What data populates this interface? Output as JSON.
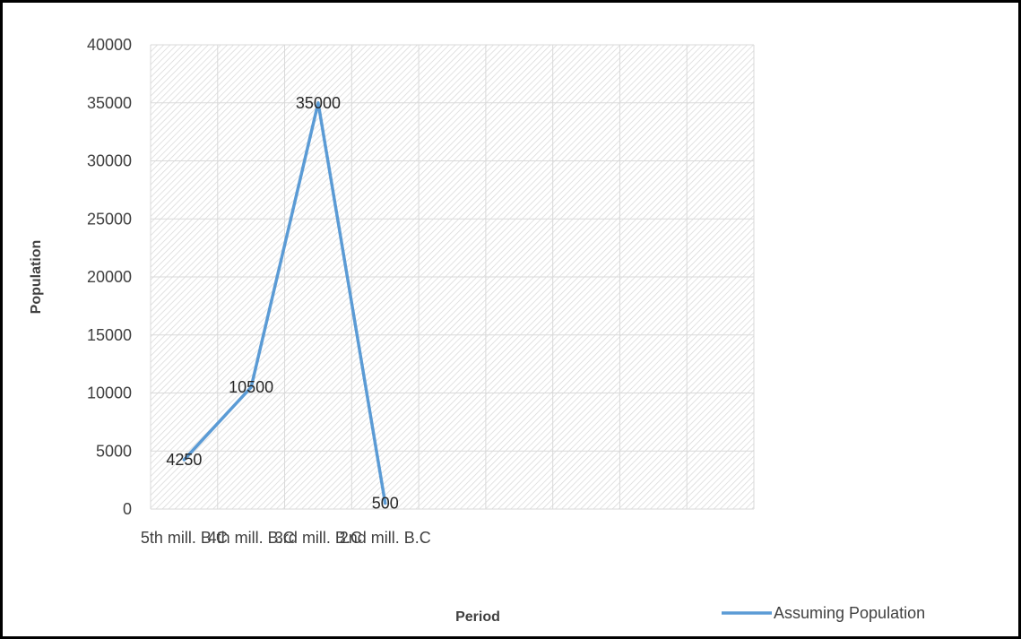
{
  "chart_data": {
    "type": "line",
    "title": "",
    "xlabel": "Period",
    "ylabel": "Population",
    "categories": [
      "5th mill. B.C",
      "4th mill. B.C",
      "3rd mill. B.C",
      "2nd mill. B.C"
    ],
    "slots": 9,
    "ylim": [
      0,
      40000
    ],
    "ytick_step": 5000,
    "yticks": [
      "0",
      "5000",
      "10000",
      "15000",
      "20000",
      "25000",
      "30000",
      "35000",
      "40000"
    ],
    "grid": true,
    "legend_position": "bottom-right",
    "series": [
      {
        "name": "Assuming Population",
        "color": "#5B9BD5",
        "values": [
          4250,
          10500,
          35000,
          500
        ],
        "data_labels": [
          "4250",
          "10500",
          "35000",
          "500"
        ]
      }
    ]
  }
}
